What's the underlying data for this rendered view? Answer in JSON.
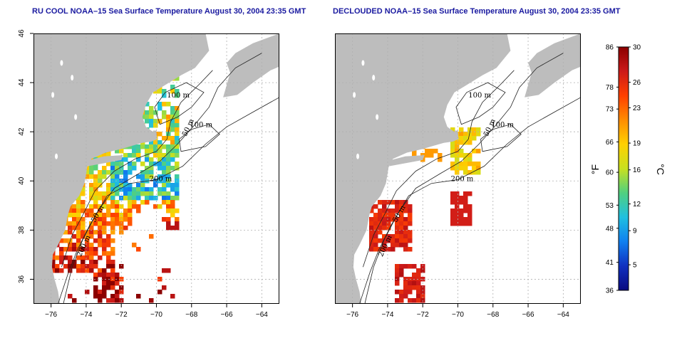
{
  "panels": [
    {
      "title": "RU COOL NOAA–15 Sea Surface Temperature August 30, 2004 23:35 GMT",
      "contour_labels": [
        "100 m",
        "100 m",
        "50 m",
        "200 m",
        "50 m",
        "200 m"
      ],
      "mode": "cloudy"
    },
    {
      "title": "DECLOUDED NOAA–15 Sea Surface Temperature August 30, 2004 23:35 GMT",
      "contour_labels": [
        "100 m",
        "100 m",
        "50 m",
        "200 m",
        "50 m",
        "200 m"
      ],
      "mode": "declouded"
    }
  ],
  "axes": {
    "x_ticks": [
      "−76",
      "−74",
      "−72",
      "−70",
      "−68",
      "−66",
      "−64"
    ],
    "y_ticks": [
      "46",
      "44",
      "42",
      "40",
      "38",
      "36"
    ],
    "lon_range": [
      -77,
      -63
    ],
    "lat_range": [
      35,
      46
    ]
  },
  "colorbar": {
    "f_labels": [
      "86",
      "78",
      "73",
      "66",
      "60",
      "53",
      "48",
      "41",
      "36"
    ],
    "c_labels": [
      "30",
      "26",
      "23",
      "19",
      "16",
      "12",
      "9",
      "5"
    ],
    "f_unit": "°F",
    "c_unit": "°C",
    "colors": [
      "#8b0000",
      "#cc1a1a",
      "#ff4000",
      "#ff8c00",
      "#ffd000",
      "#c8e020",
      "#50d080",
      "#20c0e0",
      "#1080f0",
      "#1030c0",
      "#0a0a80"
    ]
  },
  "colors": {
    "land": "#bdbdbd",
    "grid": "#b0b0b0",
    "title": "#1a1aa0"
  }
}
